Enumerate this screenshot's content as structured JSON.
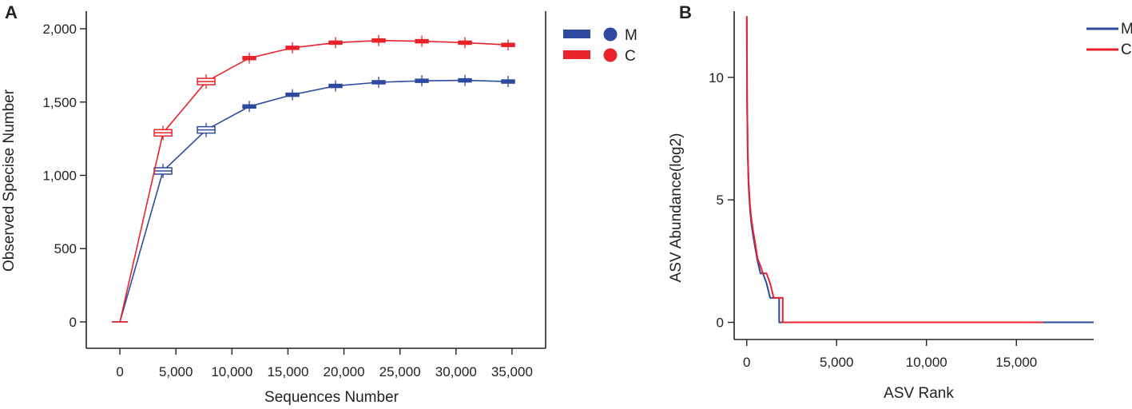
{
  "colors": {
    "M": "#2e4a9e",
    "C": "#e8232b",
    "axis": "#222222"
  },
  "chart_data": [
    {
      "panel": "A",
      "type": "line",
      "xlabel": "Sequences Number",
      "ylabel": "Observed Specise Number",
      "xlim": [
        -3000,
        38000
      ],
      "ylim": [
        -180,
        2120
      ],
      "xticks": [
        0,
        5000,
        10000,
        15000,
        20000,
        25000,
        30000,
        35000
      ],
      "xtick_labels": [
        "0",
        "5,000",
        "10,000",
        "15,000",
        "20,000",
        "25,000",
        "30,000",
        "35,000"
      ],
      "yticks": [
        0,
        500,
        1000,
        1500,
        2000
      ],
      "ytick_labels": [
        "0",
        "500",
        "1,000",
        "1,500",
        "2,000"
      ],
      "legend": {
        "position": "top-right",
        "marker": "box + circle",
        "entries": [
          "M",
          "C"
        ]
      },
      "x": [
        0,
        3850,
        7700,
        11550,
        15400,
        19250,
        23100,
        26950,
        30800,
        34650
      ],
      "series": [
        {
          "name": "M",
          "values": [
            0,
            1030,
            1310,
            1470,
            1550,
            1610,
            1635,
            1645,
            1648,
            1640
          ]
        },
        {
          "name": "C",
          "values": [
            0,
            1290,
            1640,
            1800,
            1870,
            1905,
            1920,
            1915,
            1905,
            1890
          ]
        }
      ]
    },
    {
      "panel": "B",
      "type": "line",
      "xlabel": "ASV Rank",
      "ylabel": "ASV Abundance(log2)",
      "xlim": [
        -700,
        19300
      ],
      "ylim": [
        -0.7,
        12.7
      ],
      "xticks": [
        0,
        5000,
        10000,
        15000
      ],
      "xtick_labels": [
        "0",
        "5,000",
        "10,000",
        "15,000"
      ],
      "yticks": [
        0,
        5,
        10
      ],
      "ytick_labels": [
        "0",
        "5",
        "10"
      ],
      "legend": {
        "position": "top-right",
        "marker": "line",
        "entries": [
          "M",
          "C"
        ]
      },
      "series": [
        {
          "name": "M",
          "x": [
            0,
            20,
            50,
            100,
            180,
            260,
            360,
            480,
            600,
            760,
            900,
            1100,
            1300,
            1500,
            1700,
            1800,
            1800,
            19300
          ],
          "values": [
            12.4,
            9.0,
            7.0,
            5.6,
            4.6,
            4.0,
            3.5,
            3.0,
            2.5,
            2.0,
            2.0,
            1.6,
            1.0,
            1.0,
            1.0,
            1.0,
            0,
            0
          ]
        },
        {
          "name": "C",
          "x": [
            0,
            20,
            50,
            100,
            180,
            260,
            360,
            480,
            600,
            760,
            900,
            1100,
            1300,
            1500,
            1700,
            2000,
            2000,
            16500
          ],
          "values": [
            12.5,
            9.2,
            7.2,
            5.8,
            4.8,
            4.2,
            3.7,
            3.2,
            2.6,
            2.3,
            2.0,
            2.0,
            1.6,
            1.0,
            1.0,
            1.0,
            0,
            0
          ]
        }
      ]
    }
  ]
}
